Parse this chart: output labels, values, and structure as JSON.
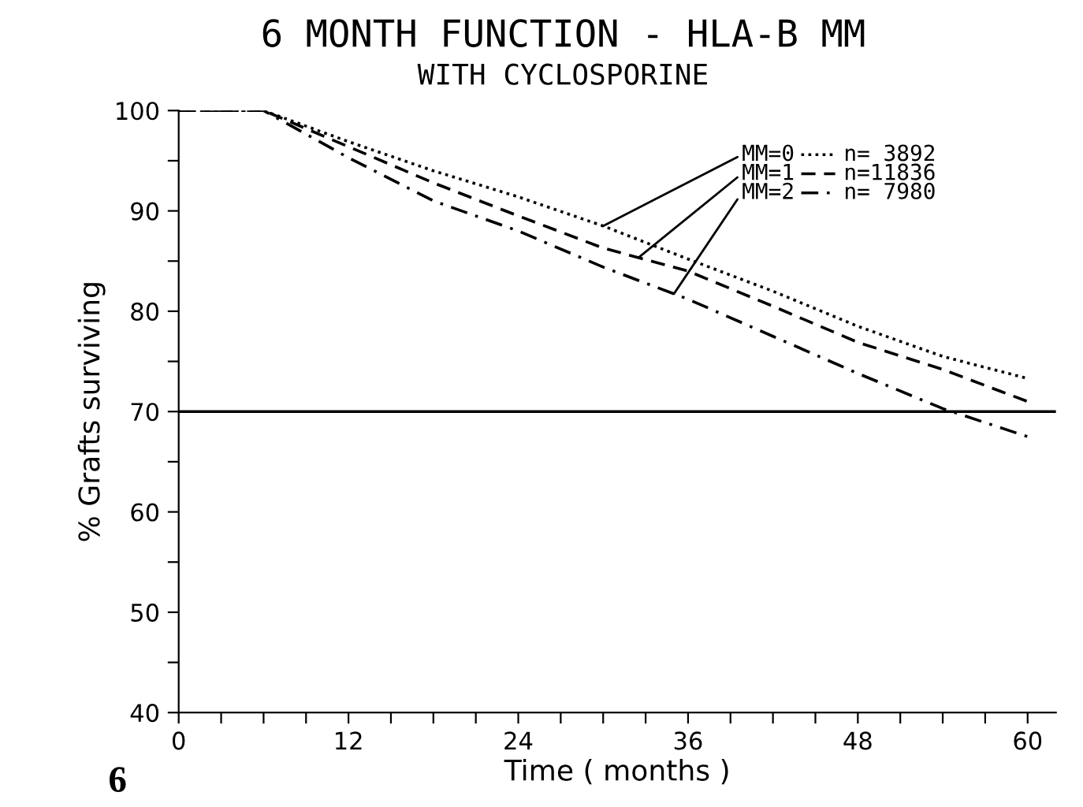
{
  "chart_data": {
    "type": "line",
    "title": "6 MONTH FUNCTION - HLA-B MM",
    "subtitle": "WITH CYCLOSPORINE",
    "xlabel": "Time ( months )",
    "ylabel": "% Grafts surviving",
    "x": [
      0,
      6,
      12,
      18,
      24,
      30,
      36,
      42,
      48,
      54,
      60
    ],
    "series": [
      {
        "name": "MM=0",
        "color": "#000000",
        "line_style": "dotted",
        "values": [
          100,
          100,
          96.9,
          94.0,
          91.4,
          88.5,
          85.2,
          82.0,
          78.5,
          75.5,
          73.3
        ]
      },
      {
        "name": "MM=1",
        "color": "#000000",
        "line_style": "dashed",
        "values": [
          100,
          100,
          96.4,
          92.8,
          89.5,
          86.3,
          84.0,
          80.5,
          76.9,
          74.2,
          71.0
        ]
      },
      {
        "name": "MM=2",
        "color": "#000000",
        "line_style": "dashdot",
        "values": [
          100,
          100,
          95.3,
          91.0,
          88.0,
          84.4,
          81.2,
          77.5,
          73.8,
          70.3,
          67.5
        ]
      }
    ],
    "annotations": [
      "n= 3892",
      "n=11836",
      "n= 7980",
      "6"
    ],
    "ref_lines": [
      {
        "axis": "y",
        "value": 70,
        "color": "#000000"
      }
    ],
    "xlim": [
      0,
      62
    ],
    "ylim": [
      40,
      100
    ],
    "xticks": [
      0,
      {
        "value": 3,
        "label": null
      },
      {
        "value": 6,
        "label": null
      },
      {
        "value": 9,
        "label": null
      },
      12,
      {
        "value": 15,
        "label": null
      },
      {
        "value": 18,
        "label": null
      },
      {
        "value": 21,
        "label": null
      },
      24,
      {
        "value": 27,
        "label": null
      },
      {
        "value": 30,
        "label": null
      },
      {
        "value": 33,
        "label": null
      },
      36,
      {
        "value": 39,
        "label": null
      },
      {
        "value": 42,
        "label": null
      },
      {
        "value": 45,
        "label": null
      },
      48,
      {
        "value": 51,
        "label": null
      },
      {
        "value": 54,
        "label": null
      },
      {
        "value": 57,
        "label": null
      },
      60
    ],
    "yticks": [
      40,
      {
        "value": 45,
        "label": null
      },
      50,
      {
        "value": 55,
        "label": null
      },
      60,
      {
        "value": 65,
        "label": null
      },
      70,
      {
        "value": 75,
        "label": null
      },
      80,
      {
        "value": 85,
        "label": null
      },
      90,
      {
        "value": 95,
        "label": null
      },
      100
    ],
    "grid": false,
    "legend": "top right",
    "marker": "none"
  }
}
